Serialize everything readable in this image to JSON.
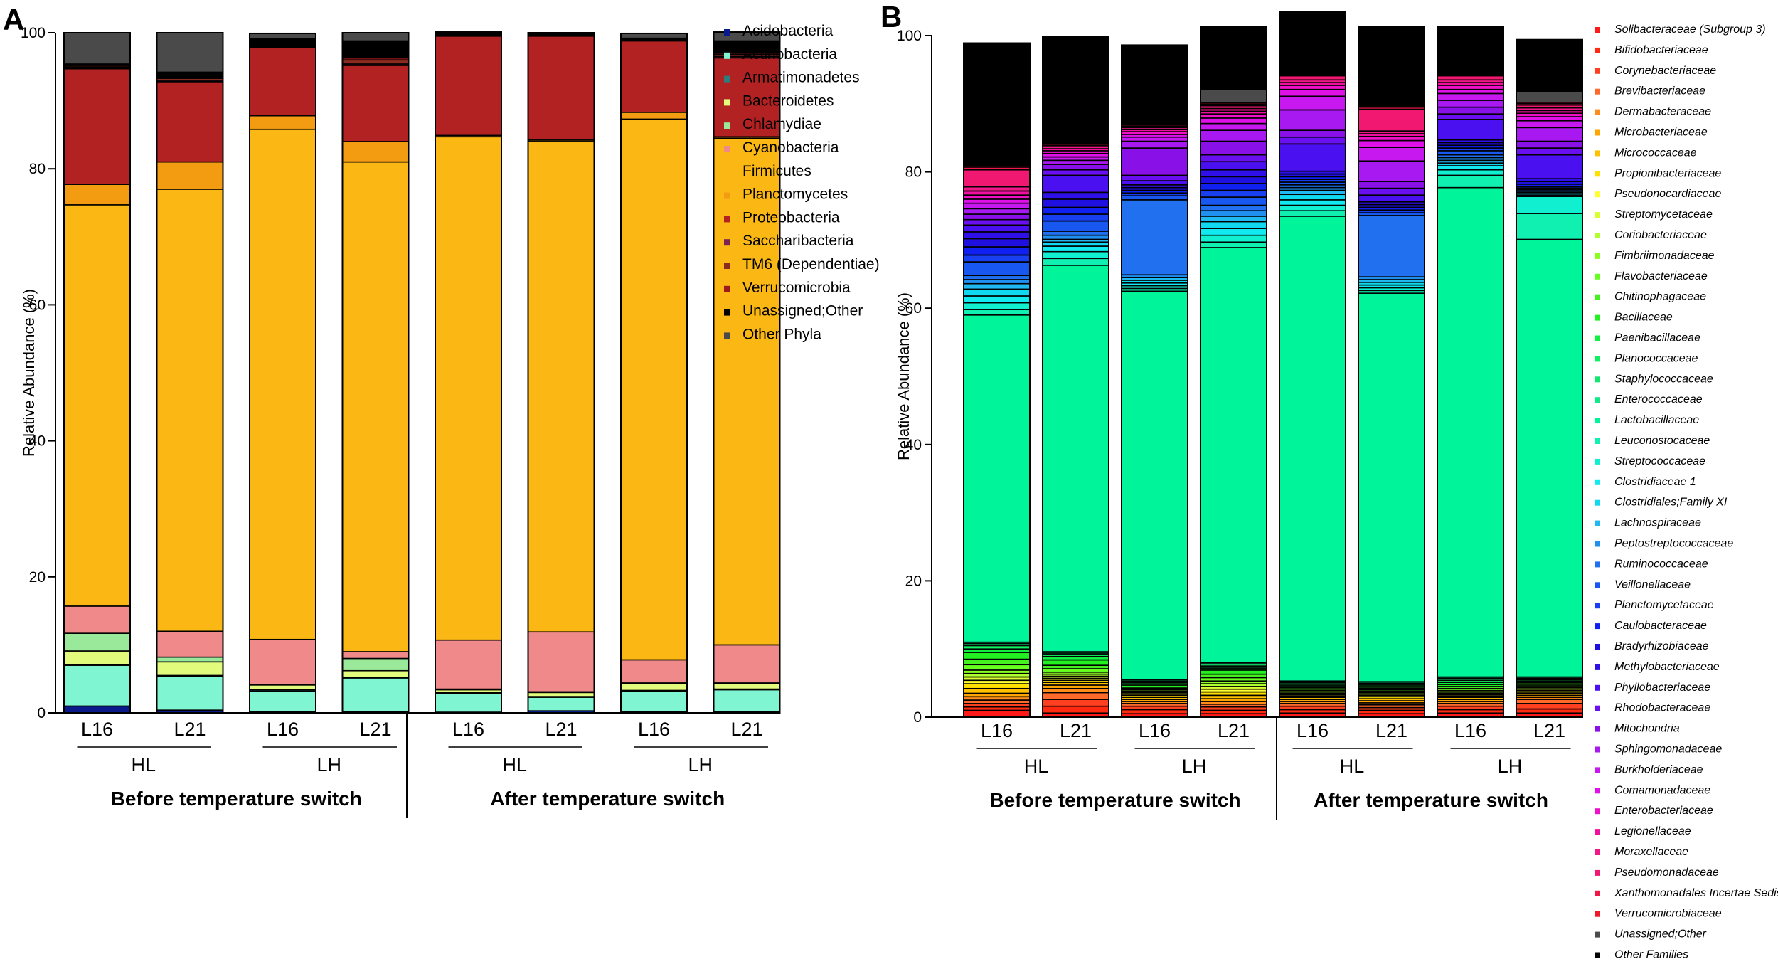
{
  "chart_data": [
    {
      "panel": "A",
      "type": "bar",
      "stacked": true,
      "ylabel": "Relative Abundance (%)",
      "ylim": [
        0,
        100
      ],
      "yticks": [
        "0",
        "20",
        "40",
        "60",
        "80",
        "100"
      ],
      "bars": [
        {
          "label": "L16",
          "group": "HL",
          "period": "Before temperature switch"
        },
        {
          "label": "L21",
          "group": "HL",
          "period": "Before temperature switch"
        },
        {
          "label": "L16",
          "group": "LH",
          "period": "Before temperature switch"
        },
        {
          "label": "L21",
          "group": "LH",
          "period": "Before temperature switch"
        },
        {
          "label": "L16",
          "group": "HL",
          "period": "After temperature switch"
        },
        {
          "label": "L21",
          "group": "HL",
          "period": "After temperature switch"
        },
        {
          "label": "L16",
          "group": "LH",
          "period": "After temperature switch"
        },
        {
          "label": "L21",
          "group": "LH",
          "period": "After temperature switch"
        }
      ],
      "groups": [
        "HL",
        "LH",
        "HL",
        "LH"
      ],
      "periods": [
        "Before temperature switch",
        "After temperature switch"
      ],
      "series": [
        {
          "name": "Acidobacteria",
          "color": "#0a1a8a",
          "values": [
            1.0,
            0.4,
            0.2,
            0.2,
            0.1,
            0.3,
            0.2,
            0.2
          ]
        },
        {
          "name": "Actinobacteria",
          "color": "#7ff5d2",
          "values": [
            6.0,
            5.0,
            3.0,
            4.8,
            2.8,
            2.0,
            3.0,
            3.2
          ]
        },
        {
          "name": "Armatimonadetes",
          "color": "#2e7d7d",
          "values": [
            0.1,
            0.1,
            0.2,
            0.2,
            0.1,
            0.1,
            0.1,
            0.1
          ]
        },
        {
          "name": "Bacteroidetes",
          "color": "#e2fb7c",
          "values": [
            2.0,
            2.0,
            0.7,
            1.0,
            0.4,
            0.6,
            1.0,
            0.8
          ]
        },
        {
          "name": "Chlamydiae",
          "color": "#9ae89a",
          "values": [
            2.6,
            0.7,
            0.1,
            1.8,
            0.1,
            0.1,
            0.1,
            0.1
          ]
        },
        {
          "name": "Cyanobacteria",
          "color": "#f08a8a",
          "values": [
            4.0,
            3.8,
            6.6,
            1.0,
            7.2,
            8.8,
            3.4,
            5.6
          ]
        },
        {
          "name": "Firmicutes",
          "color": "#fbb814",
          "values": [
            59.0,
            65.0,
            75.0,
            72.0,
            74.0,
            72.2,
            79.5,
            74.5
          ]
        },
        {
          "name": "Planctomycetes",
          "color": "#f39c12",
          "values": [
            3.0,
            4.0,
            2.0,
            3.0,
            0.2,
            0.2,
            1.0,
            0.2
          ]
        },
        {
          "name": "Proteobacteria",
          "color": "#b22222",
          "values": [
            17.0,
            11.8,
            10.0,
            11.2,
            14.6,
            15.2,
            10.5,
            11.6
          ]
        },
        {
          "name": "Saccharibacteria",
          "color": "#7b2452",
          "values": [
            0.2,
            0.2,
            0.1,
            0.2,
            0.1,
            0.1,
            0.1,
            0.2
          ]
        },
        {
          "name": "TM6 (Dependentiae)",
          "color": "#8b2a1e",
          "values": [
            0.2,
            0.3,
            0.1,
            0.6,
            0.1,
            0.1,
            0.1,
            0.3
          ]
        },
        {
          "name": "Verrucomicrobia",
          "color": "#9e1b1b",
          "values": [
            0.2,
            0.2,
            0.1,
            0.3,
            0.1,
            0.1,
            0.1,
            0.2
          ]
        },
        {
          "name": "Unassigned;Other",
          "color": "#000000",
          "values": [
            0.1,
            0.7,
            1.0,
            2.5,
            0.1,
            0.1,
            0.1,
            1.8
          ]
        },
        {
          "name": "Other Phyla",
          "color": "#4a4a4a",
          "values": [
            4.6,
            5.8,
            0.8,
            1.2,
            0.2,
            0.1,
            0.7,
            1.3
          ]
        }
      ]
    },
    {
      "panel": "B",
      "type": "bar",
      "stacked": true,
      "ylabel": "Relative Abundance (%)",
      "ylim": [
        0,
        100
      ],
      "yticks": [
        "0",
        "20",
        "40",
        "60",
        "80",
        "100"
      ],
      "bars": [
        {
          "label": "L16",
          "group": "HL",
          "period": "Before temperature switch"
        },
        {
          "label": "L21",
          "group": "HL",
          "period": "Before temperature switch"
        },
        {
          "label": "L16",
          "group": "LH",
          "period": "Before temperature switch"
        },
        {
          "label": "L21",
          "group": "LH",
          "period": "Before temperature switch"
        },
        {
          "label": "L16",
          "group": "HL",
          "period": "After temperature switch"
        },
        {
          "label": "L21",
          "group": "HL",
          "period": "After temperature switch"
        },
        {
          "label": "L16",
          "group": "LH",
          "period": "After temperature switch"
        },
        {
          "label": "L21",
          "group": "LH",
          "period": "After temperature switch"
        }
      ],
      "groups": [
        "HL",
        "LH",
        "HL",
        "LH"
      ],
      "periods": [
        "Before temperature switch",
        "After temperature switch"
      ],
      "series": [
        {
          "name": "Solibacteraceae (Subgroup 3)",
          "color": "#ff1a1a",
          "values": [
            1.0,
            0.6,
            0.5,
            0.5,
            0.6,
            0.5,
            0.6,
            0.6
          ]
        },
        {
          "name": "Bifidobacteriaceae",
          "color": "#ff2a10",
          "values": [
            0.5,
            1.0,
            0.6,
            0.5,
            0.5,
            0.5,
            0.5,
            0.6
          ]
        },
        {
          "name": "Corynebacteriaceae",
          "color": "#ff4020",
          "values": [
            0.5,
            1.0,
            0.5,
            0.5,
            0.5,
            0.4,
            0.5,
            0.8
          ]
        },
        {
          "name": "Brevibacteriaceae",
          "color": "#ff6a2a",
          "values": [
            0.5,
            1.0,
            0.4,
            0.4,
            0.4,
            0.4,
            0.4,
            0.6
          ]
        },
        {
          "name": "Dermabacteraceae",
          "color": "#ff8c1a",
          "values": [
            0.5,
            0.6,
            0.3,
            0.4,
            0.3,
            0.3,
            0.3,
            0.3
          ]
        },
        {
          "name": "Microbacteriaceae",
          "color": "#ffa500",
          "values": [
            0.5,
            0.5,
            0.3,
            0.4,
            0.3,
            0.3,
            0.3,
            0.3
          ]
        },
        {
          "name": "Micrococcaceae",
          "color": "#ffc000",
          "values": [
            0.7,
            0.4,
            0.3,
            0.5,
            0.3,
            0.3,
            0.3,
            0.3
          ]
        },
        {
          "name": "Propionibacteriaceae",
          "color": "#ffe000",
          "values": [
            0.7,
            0.3,
            0.3,
            0.5,
            0.2,
            0.3,
            0.2,
            0.2
          ]
        },
        {
          "name": "Pseudonocardiaceae",
          "color": "#ffff30",
          "values": [
            0.5,
            0.3,
            0.2,
            0.4,
            0.2,
            0.2,
            0.2,
            0.2
          ]
        },
        {
          "name": "Streptomycetaceae",
          "color": "#d8ff30",
          "values": [
            0.5,
            0.3,
            0.2,
            0.4,
            0.2,
            0.2,
            0.2,
            0.2
          ]
        },
        {
          "name": "Coriobacteriaceae",
          "color": "#b0ff30",
          "values": [
            0.5,
            0.3,
            0.2,
            0.4,
            0.2,
            0.2,
            0.2,
            0.2
          ]
        },
        {
          "name": "Fimbriimonadaceae",
          "color": "#88ff20",
          "values": [
            0.5,
            0.3,
            0.2,
            0.4,
            0.2,
            0.2,
            0.2,
            0.2
          ]
        },
        {
          "name": "Flavobacteriaceae",
          "color": "#66ff20",
          "values": [
            0.8,
            0.5,
            0.2,
            0.5,
            0.2,
            0.2,
            0.3,
            0.2
          ]
        },
        {
          "name": "Chitinophagaceae",
          "color": "#44f020",
          "values": [
            0.8,
            0.5,
            0.2,
            0.5,
            0.2,
            0.2,
            0.3,
            0.2
          ]
        },
        {
          "name": "Bacillaceae",
          "color": "#22f020",
          "values": [
            1.0,
            0.8,
            0.3,
            0.6,
            0.2,
            0.2,
            0.3,
            0.2
          ]
        },
        {
          "name": "Paenibacillaceae",
          "color": "#10f040",
          "values": [
            0.5,
            0.5,
            0.2,
            0.3,
            0.2,
            0.2,
            0.3,
            0.2
          ]
        },
        {
          "name": "Planococcaceae",
          "color": "#10f060",
          "values": [
            0.5,
            0.3,
            0.2,
            0.3,
            0.2,
            0.2,
            0.3,
            0.2
          ]
        },
        {
          "name": "Staphylococcaceae",
          "color": "#10e870",
          "values": [
            0.3,
            0.2,
            0.2,
            0.3,
            0.2,
            0.2,
            0.3,
            0.2
          ]
        },
        {
          "name": "Enterococcaceae",
          "color": "#10e88a",
          "values": [
            0.2,
            0.2,
            0.2,
            0.2,
            0.2,
            0.2,
            0.2,
            0.2
          ]
        },
        {
          "name": "Lactobacillaceae",
          "color": "#00f59a",
          "values": [
            48.0,
            56.7,
            57.0,
            60.9,
            68.2,
            57.0,
            71.8,
            64.2
          ]
        },
        {
          "name": "Leuconostocaceae",
          "color": "#10f0b0",
          "values": [
            0.8,
            1.0,
            0.4,
            0.8,
            0.8,
            0.4,
            1.8,
            3.8
          ]
        },
        {
          "name": "Streptococcaceae",
          "color": "#10f0d0",
          "values": [
            1.0,
            1.0,
            0.4,
            1.0,
            0.8,
            0.4,
            0.8,
            2.5
          ]
        },
        {
          "name": "Clostridiaceae 1",
          "color": "#10eaf0",
          "values": [
            1.0,
            0.8,
            0.4,
            1.0,
            0.8,
            0.4,
            0.6,
            0.2
          ]
        },
        {
          "name": "Clostridiales;Family XI",
          "color": "#10d8f0",
          "values": [
            1.0,
            0.6,
            0.4,
            1.0,
            0.8,
            0.4,
            0.4,
            0.2
          ]
        },
        {
          "name": "Lachnospiraceae",
          "color": "#20b8f0",
          "values": [
            0.8,
            0.4,
            0.4,
            0.8,
            0.6,
            0.4,
            0.4,
            0.2
          ]
        },
        {
          "name": "Peptostreptococcaceae",
          "color": "#2090f0",
          "values": [
            0.6,
            0.6,
            0.4,
            0.8,
            0.4,
            0.4,
            0.4,
            0.2
          ]
        },
        {
          "name": "Ruminococcaceae",
          "color": "#2070f0",
          "values": [
            0.6,
            0.6,
            11.0,
            0.8,
            0.4,
            9.0,
            0.4,
            0.2
          ]
        },
        {
          "name": "Veillonellaceae",
          "color": "#1858f0",
          "values": [
            2.0,
            1.5,
            0.6,
            1.2,
            0.4,
            0.4,
            0.6,
            0.2
          ]
        },
        {
          "name": "Planctomycetaceae",
          "color": "#1840f0",
          "values": [
            1.0,
            1.0,
            0.4,
            1.0,
            0.4,
            0.4,
            0.4,
            0.2
          ]
        },
        {
          "name": "Caulobacteraceae",
          "color": "#1020f0",
          "values": [
            1.2,
            1.0,
            0.4,
            1.0,
            0.4,
            0.4,
            0.4,
            0.4
          ]
        },
        {
          "name": "Bradyrhizobiaceae",
          "color": "#2010e0",
          "values": [
            1.2,
            1.2,
            0.4,
            1.0,
            0.4,
            0.4,
            0.4,
            0.4
          ]
        },
        {
          "name": "Methylobacteriaceae",
          "color": "#3010e8",
          "values": [
            1.0,
            1.0,
            0.4,
            1.0,
            0.4,
            0.4,
            0.4,
            0.4
          ]
        },
        {
          "name": "Phyllobacteriaceae",
          "color": "#4a10f0",
          "values": [
            1.0,
            2.5,
            0.6,
            1.2,
            4.0,
            1.0,
            3.0,
            3.5
          ]
        },
        {
          "name": "Rhodobacteraceae",
          "color": "#6a10f0",
          "values": [
            0.8,
            0.8,
            0.8,
            1.0,
            1.0,
            1.0,
            0.8,
            1.0
          ]
        },
        {
          "name": "Mitochondria",
          "color": "#8a10e8",
          "values": [
            0.8,
            0.8,
            4.0,
            2.0,
            1.0,
            1.0,
            1.0,
            1.0
          ]
        },
        {
          "name": "Sphingomonadaceae",
          "color": "#a818f0",
          "values": [
            0.8,
            0.6,
            1.0,
            1.6,
            3.0,
            3.0,
            1.0,
            2.0
          ]
        },
        {
          "name": "Burkholderiaceae",
          "color": "#c818f0",
          "values": [
            0.8,
            0.5,
            0.6,
            1.0,
            2.0,
            2.0,
            1.0,
            1.0
          ]
        },
        {
          "name": "Comamonadaceae",
          "color": "#e010e8",
          "values": [
            0.6,
            0.5,
            0.4,
            0.8,
            1.0,
            1.0,
            0.6,
            0.6
          ]
        },
        {
          "name": "Enterobacteriaceae",
          "color": "#f010c8",
          "values": [
            0.6,
            0.4,
            0.4,
            0.6,
            0.6,
            0.6,
            0.6,
            0.5
          ]
        },
        {
          "name": "Legionellaceae",
          "color": "#f010a0",
          "values": [
            0.6,
            0.3,
            0.3,
            0.4,
            0.4,
            0.4,
            0.4,
            0.4
          ]
        },
        {
          "name": "Moraxellaceae",
          "color": "#f01888",
          "values": [
            0.6,
            0.3,
            0.3,
            0.4,
            0.4,
            0.4,
            0.4,
            0.4
          ]
        },
        {
          "name": "Pseudomonadaceae",
          "color": "#f01870",
          "values": [
            2.5,
            0.2,
            0.2,
            0.4,
            0.6,
            3.2,
            0.6,
            0.4
          ]
        },
        {
          "name": "Xanthomonadales Incertae Sedis",
          "color": "#f01848",
          "values": [
            0.4,
            0.2,
            0.2,
            0.2,
            0.2,
            0.3,
            0.2,
            0.2
          ]
        },
        {
          "name": "Verrucomicrobiaceae",
          "color": "#f01828",
          "values": [
            0.2,
            0.1,
            0.1,
            0.2,
            0.1,
            0.1,
            0.1,
            0.2
          ]
        },
        {
          "name": "Unassigned;Other",
          "color": "#4a4a4a",
          "values": [
            0.0,
            0.0,
            0.0,
            2.0,
            0.0,
            0.0,
            0.0,
            1.6
          ]
        },
        {
          "name": "Other Families",
          "color": "#000000",
          "values": [
            18.0,
            15.6,
            11.6,
            9.2,
            9.1,
            11.7,
            6.9,
            7.6
          ]
        }
      ]
    }
  ]
}
